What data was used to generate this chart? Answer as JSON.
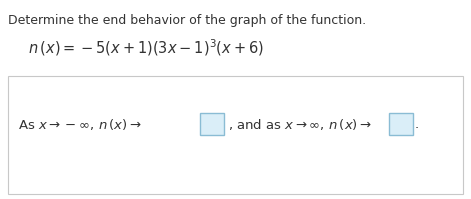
{
  "background_color": "#ffffff",
  "border_color": "#c8c8c8",
  "title_text": "Determine the end behavior of the graph of the function.",
  "title_fontsize": 9.0,
  "title_color": "#333333",
  "function_fontsize": 10.5,
  "function_color": "#333333",
  "answer_fontsize": 9.5,
  "answer_color": "#333333",
  "box_edge_color": "#8abcd4",
  "box_face_color": "#daeef8",
  "fig_width": 4.71,
  "fig_height": 1.99,
  "dpi": 100
}
